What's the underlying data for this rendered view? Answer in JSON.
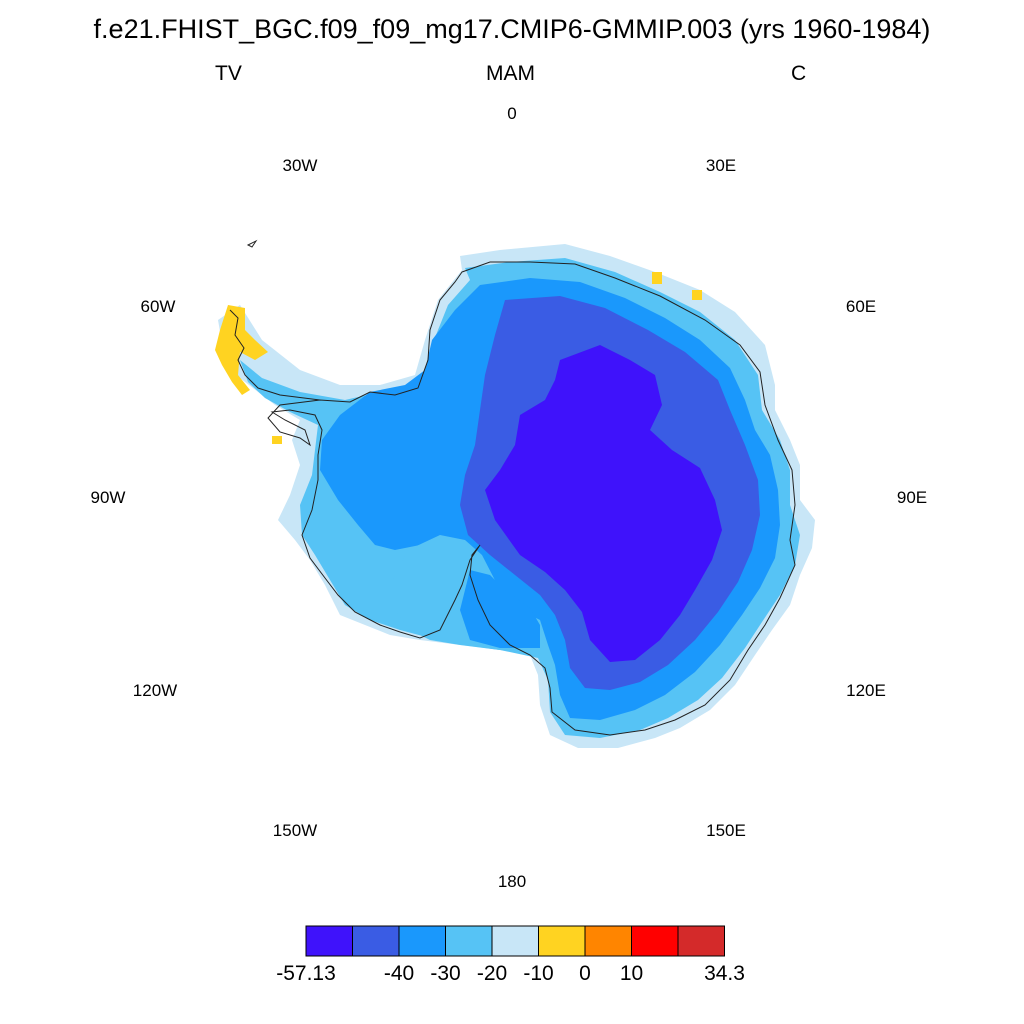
{
  "title": "f.e21.FHIST_BGC.f09_f09_mg17.CMIP6-GMMIP.003 (yrs 1960-1984)",
  "left_label": "TV",
  "center_label": "MAM",
  "right_label": "C",
  "longitude_labels": {
    "deg0": "0",
    "deg30e": "30E",
    "deg60e": "60E",
    "deg90e": "90E",
    "deg120e": "120E",
    "deg150e": "150E",
    "deg180": "180",
    "deg150w": "150W",
    "deg120w": "120W",
    "deg90w": "90W",
    "deg60w": "60W",
    "deg30w": "30W"
  },
  "colorbar": {
    "colors": [
      "#3f12fb",
      "#3a5ce4",
      "#1a98fc",
      "#56c3f5",
      "#c8e6f7",
      "#ffd321",
      "#ff8500",
      "#ff0000",
      "#d42a2a"
    ],
    "labels": [
      "-57.13",
      "-40",
      "-30",
      "-20",
      "-10",
      "0",
      "10",
      "34.3"
    ]
  },
  "chart_data": {
    "type": "heatmap",
    "projection": "south-polar-stereographic",
    "region": "Antarctica",
    "variable": "TV",
    "season": "MAM",
    "units": "C",
    "levels": [
      -57.13,
      -50,
      -40,
      -30,
      -20,
      -10,
      0,
      10,
      20,
      34.3
    ],
    "min": -57.13,
    "max": 34.3
  }
}
